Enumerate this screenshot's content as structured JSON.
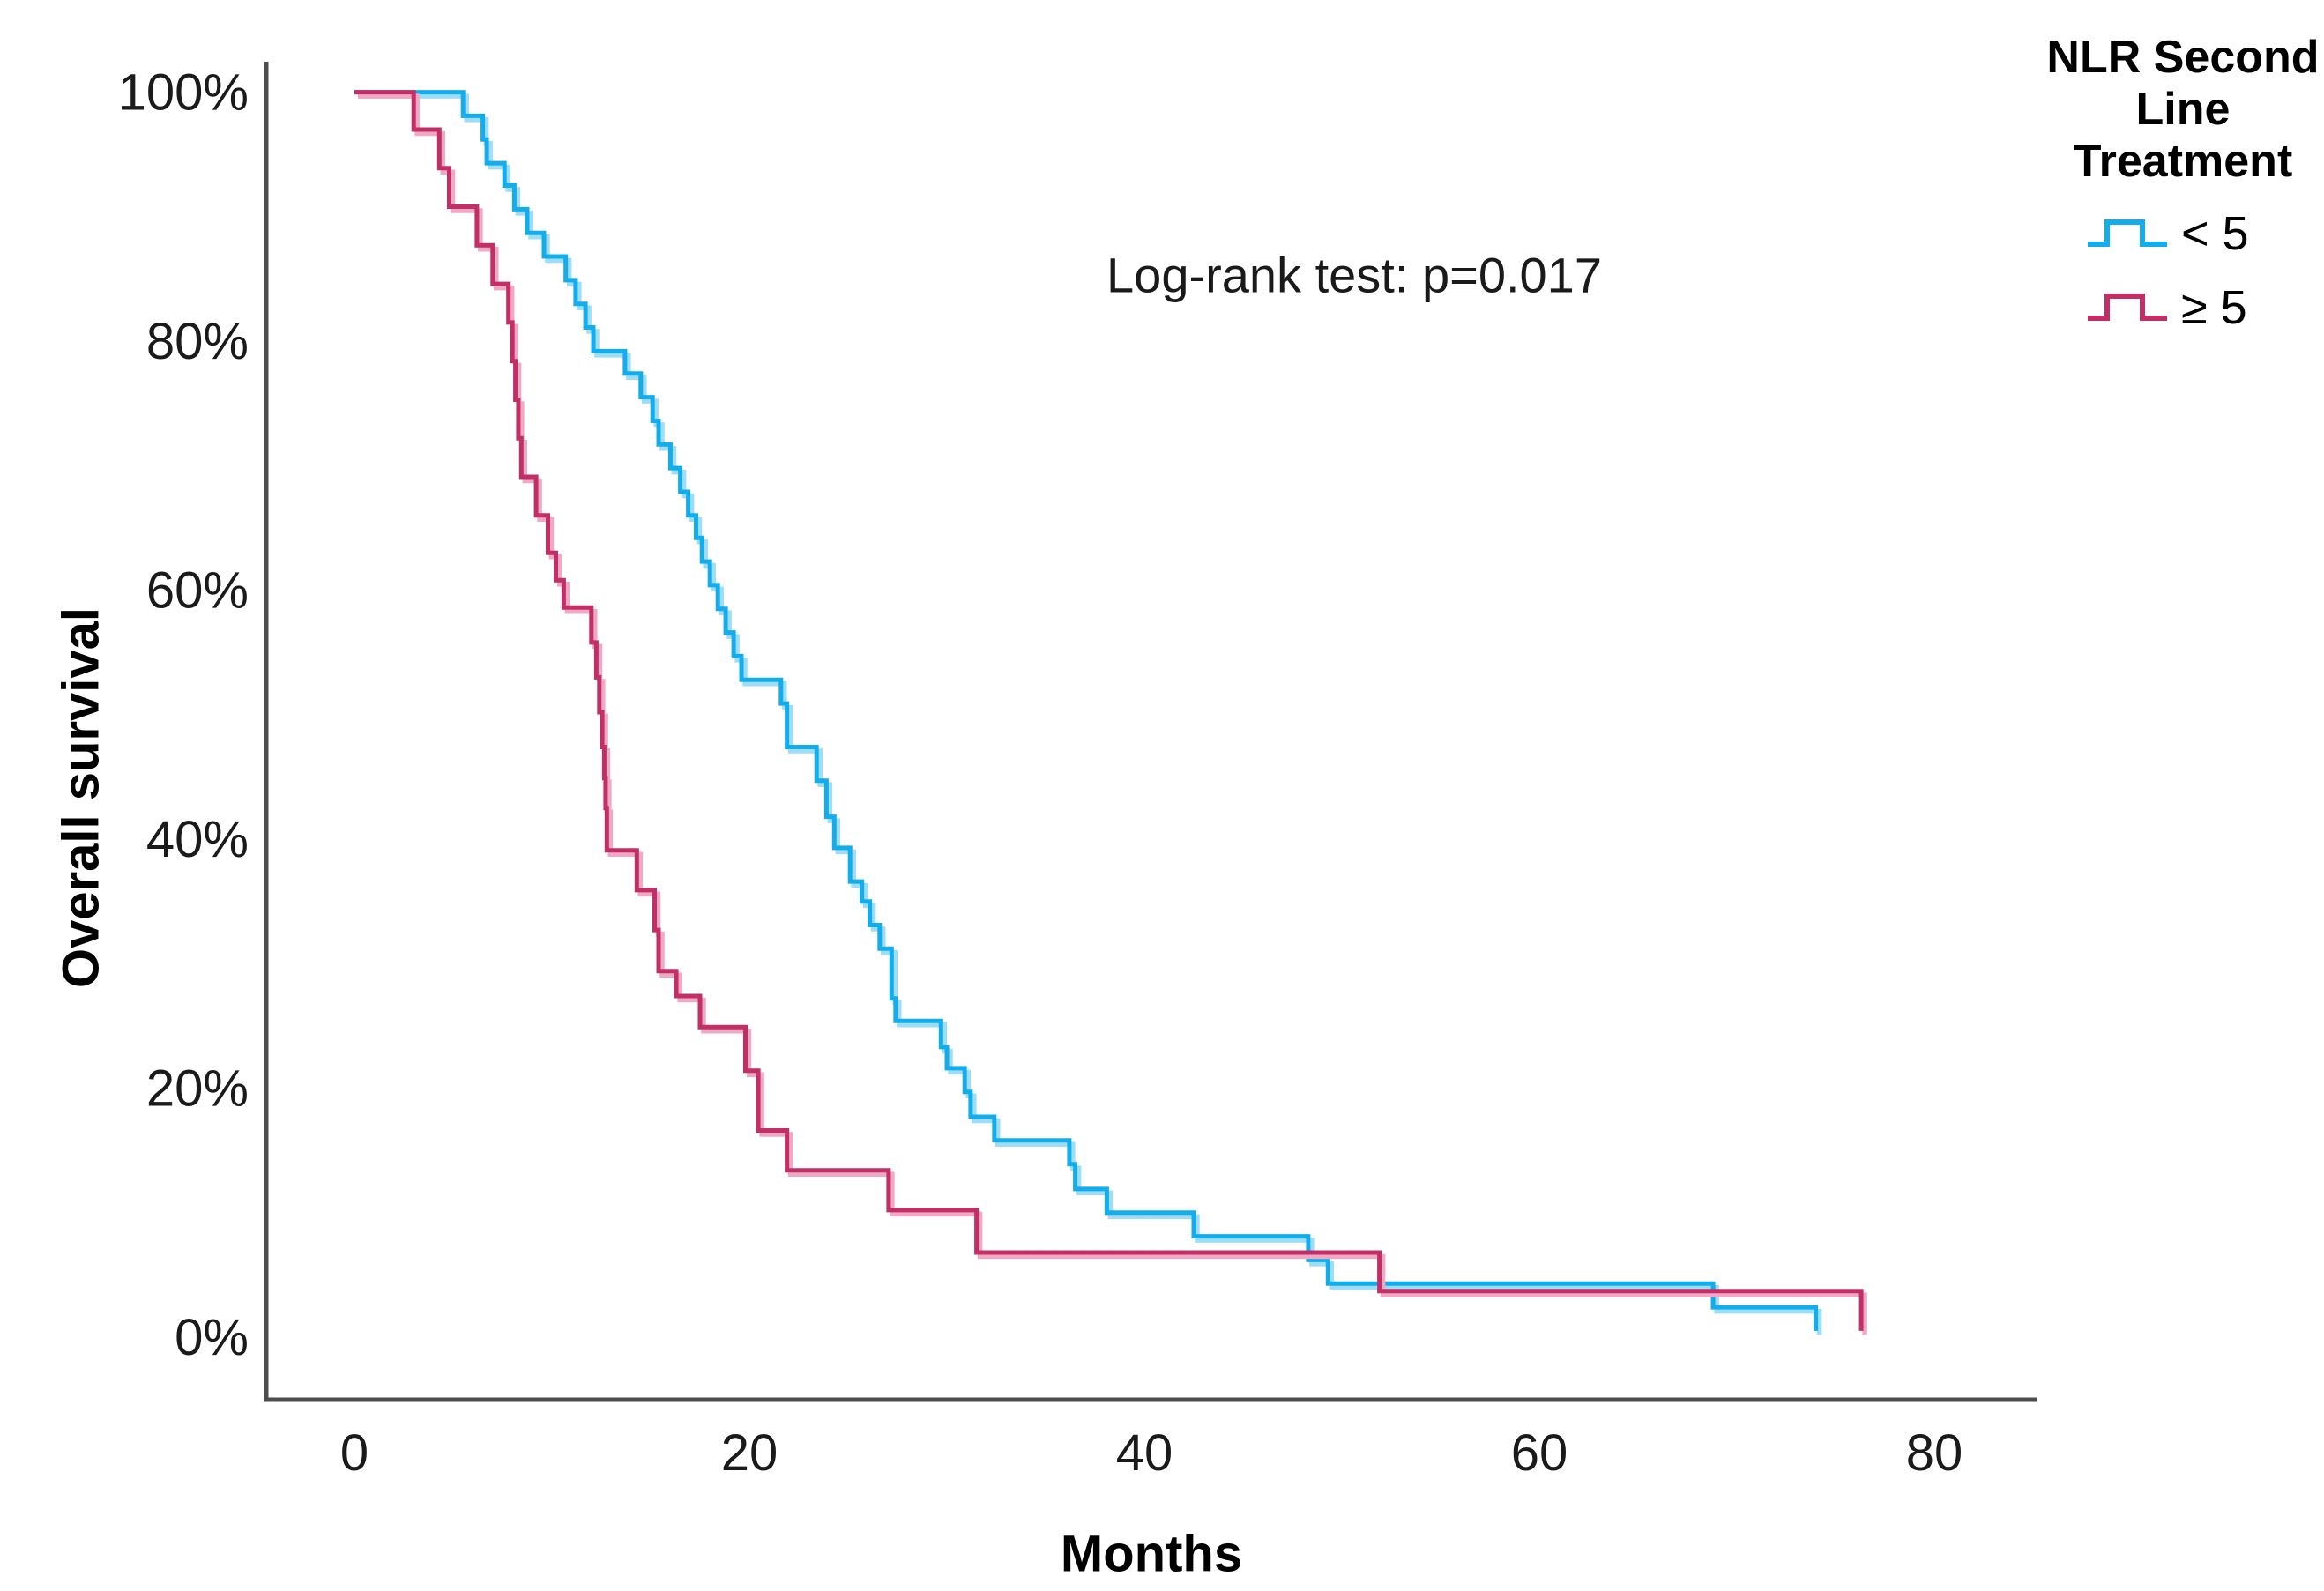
{
  "chart_data": {
    "type": "line",
    "subtype": "kaplan-meier-step-survival",
    "title": "",
    "xlabel": "Months",
    "ylabel": "Overall survival",
    "annotation": "Log-rank test: p=0.017",
    "x_ticks": [
      0,
      20,
      40,
      60,
      80
    ],
    "y_ticks": [
      {
        "value": 0,
        "label": "0%"
      },
      {
        "value": 20,
        "label": "20%"
      },
      {
        "value": 40,
        "label": "40%"
      },
      {
        "value": 60,
        "label": "60%"
      },
      {
        "value": 80,
        "label": "80%"
      },
      {
        "value": 100,
        "label": "100%"
      }
    ],
    "xlim": [
      0,
      85
    ],
    "ylim": [
      0,
      100
    ],
    "grid": false,
    "legend": {
      "title": "NLR Second Line Treatment",
      "position": "top-right",
      "entries": [
        {
          "label": "< 5",
          "color": "#14ADEC",
          "halo": "#9EDDF8"
        },
        {
          "label": "≥ 5",
          "color": "#C12F66",
          "halo": "#EFA9C5"
        }
      ]
    },
    "series": [
      {
        "name": "< 5",
        "color": "#14ADEC",
        "halo": "#9EDDF8",
        "steps": [
          [
            0,
            100
          ],
          [
            5.5,
            98.1
          ],
          [
            6.5,
            96.2
          ],
          [
            6.7,
            94.3
          ],
          [
            7.6,
            92.5
          ],
          [
            8.1,
            90.6
          ],
          [
            8.75,
            88.7
          ],
          [
            9.6,
            86.8
          ],
          [
            10.7,
            84.9
          ],
          [
            11.2,
            83.0
          ],
          [
            11.7,
            81.1
          ],
          [
            12.1,
            79.2
          ],
          [
            13.7,
            77.4
          ],
          [
            14.5,
            75.5
          ],
          [
            15.1,
            73.6
          ],
          [
            15.4,
            71.7
          ],
          [
            16.0,
            69.8
          ],
          [
            16.5,
            67.9
          ],
          [
            16.9,
            66.0
          ],
          [
            17.3,
            64.2
          ],
          [
            17.6,
            62.3
          ],
          [
            18.0,
            60.4
          ],
          [
            18.4,
            58.5
          ],
          [
            18.8,
            56.6
          ],
          [
            19.2,
            54.7
          ],
          [
            19.6,
            52.8
          ],
          [
            21.6,
            50.9
          ],
          [
            21.9,
            47.4
          ],
          [
            23.4,
            44.7
          ],
          [
            23.9,
            41.8
          ],
          [
            24.3,
            39.3
          ],
          [
            25.1,
            36.6
          ],
          [
            25.7,
            35.0
          ],
          [
            26.1,
            33.1
          ],
          [
            26.6,
            31.2
          ],
          [
            27.2,
            27.2
          ],
          [
            27.4,
            25.4
          ],
          [
            29.7,
            23.3
          ],
          [
            30.0,
            21.6
          ],
          [
            30.9,
            19.7
          ],
          [
            31.2,
            17.7
          ],
          [
            32.4,
            15.8
          ],
          [
            36.2,
            13.9
          ],
          [
            36.5,
            11.9
          ],
          [
            38.1,
            10.0
          ],
          [
            42.5,
            8.1
          ],
          [
            48.3,
            6.2
          ],
          [
            49.3,
            4.3
          ],
          [
            68.8,
            2.4
          ],
          [
            74.0,
            0.5
          ]
        ]
      },
      {
        "name": "≥ 5",
        "color": "#C12F66",
        "halo": "#EFA9C5",
        "steps": [
          [
            0,
            100
          ],
          [
            3.0,
            97.0
          ],
          [
            4.3,
            93.9
          ],
          [
            4.8,
            90.8
          ],
          [
            6.2,
            87.7
          ],
          [
            7.0,
            84.6
          ],
          [
            7.8,
            81.5
          ],
          [
            8.0,
            78.4
          ],
          [
            8.15,
            75.3
          ],
          [
            8.3,
            72.2
          ],
          [
            8.45,
            69.1
          ],
          [
            9.2,
            66.0
          ],
          [
            9.8,
            63.0
          ],
          [
            10.2,
            60.8
          ],
          [
            10.6,
            58.6
          ],
          [
            12.0,
            55.8
          ],
          [
            12.25,
            53.0
          ],
          [
            12.4,
            50.2
          ],
          [
            12.55,
            47.4
          ],
          [
            12.65,
            44.9
          ],
          [
            12.72,
            42.5
          ],
          [
            12.78,
            39.1
          ],
          [
            14.3,
            35.9
          ],
          [
            15.2,
            32.7
          ],
          [
            15.4,
            29.4
          ],
          [
            16.3,
            27.4
          ],
          [
            17.5,
            24.9
          ],
          [
            19.8,
            21.4
          ],
          [
            20.45,
            16.6
          ],
          [
            21.9,
            13.4
          ],
          [
            27.05,
            10.2
          ],
          [
            31.5,
            6.8
          ],
          [
            51.9,
            3.7
          ],
          [
            76.3,
            0.5
          ]
        ]
      }
    ],
    "axis": {
      "color": "#4D4D4D",
      "tick_label_color": "#1A1A1A"
    }
  }
}
